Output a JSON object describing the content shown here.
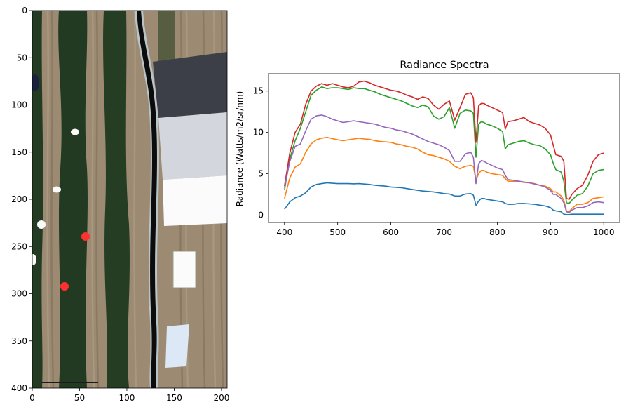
{
  "chart_data": [
    {
      "type": "image",
      "title": "",
      "xlabel": "",
      "ylabel": "",
      "xlim": [
        0,
        206
      ],
      "ylim": [
        400,
        0
      ],
      "x_ticks": [
        0,
        50,
        100,
        150,
        200
      ],
      "y_ticks": [
        0,
        50,
        100,
        150,
        200,
        250,
        300,
        350,
        400
      ],
      "colors": {
        "soil": "#9c8a72",
        "soil_dark": "#6e604e",
        "vegetation": "#203a20",
        "vegetation_light": "#2f4c2a",
        "road": "#0c0c0c",
        "road_edge": "#b8c4c8",
        "panel_dark": "#3c3f47",
        "panel_grey": "#d3d6dc",
        "panel_white": "#fbfbfb",
        "panel_blue": "#dce8f6",
        "marker_red": "#ff3030",
        "marker_white": "#fafafa"
      }
    },
    {
      "type": "line",
      "title": "Radiance Spectra",
      "xlabel": "",
      "ylabel": "Radiance (Watts/m2/sr/nm)",
      "xlim": [
        370,
        1030
      ],
      "ylim": [
        -0.9,
        17.1
      ],
      "x_ticks": [
        400,
        500,
        600,
        700,
        800,
        900,
        1000
      ],
      "y_ticks": [
        0,
        5,
        10,
        15
      ],
      "x": [
        400,
        410,
        420,
        430,
        440,
        450,
        460,
        470,
        480,
        490,
        500,
        510,
        520,
        530,
        540,
        550,
        560,
        570,
        580,
        590,
        600,
        610,
        620,
        630,
        640,
        650,
        660,
        670,
        680,
        690,
        700,
        710,
        720,
        730,
        740,
        750,
        755,
        760,
        765,
        770,
        775,
        780,
        790,
        800,
        810,
        815,
        820,
        830,
        840,
        850,
        860,
        870,
        880,
        890,
        900,
        905,
        910,
        920,
        925,
        930,
        935,
        940,
        950,
        960,
        970,
        980,
        990,
        1000
      ],
      "series": [
        {
          "color": "#1f77b4",
          "values": [
            0.7,
            1.6,
            2.1,
            2.3,
            2.7,
            3.4,
            3.7,
            3.8,
            3.9,
            3.85,
            3.8,
            3.8,
            3.8,
            3.78,
            3.8,
            3.75,
            3.7,
            3.6,
            3.55,
            3.5,
            3.4,
            3.35,
            3.3,
            3.2,
            3.1,
            3.0,
            2.9,
            2.85,
            2.8,
            2.7,
            2.6,
            2.55,
            2.3,
            2.3,
            2.55,
            2.6,
            2.4,
            1.2,
            1.7,
            2.0,
            2.0,
            1.9,
            1.8,
            1.7,
            1.6,
            1.4,
            1.3,
            1.3,
            1.4,
            1.4,
            1.35,
            1.3,
            1.2,
            1.1,
            0.9,
            0.6,
            0.5,
            0.4,
            0.1,
            0.05,
            0.05,
            0.1,
            0.1,
            0.1,
            0.1,
            0.1,
            0.1,
            0.1
          ]
        },
        {
          "color": "#ff7f0e",
          "values": [
            2.0,
            4.5,
            5.8,
            6.2,
            7.6,
            8.6,
            9.1,
            9.3,
            9.4,
            9.25,
            9.1,
            9.0,
            9.1,
            9.2,
            9.3,
            9.2,
            9.15,
            9.0,
            8.9,
            8.85,
            8.8,
            8.6,
            8.5,
            8.3,
            8.2,
            8.0,
            7.6,
            7.3,
            7.2,
            7.0,
            6.8,
            6.5,
            5.9,
            5.6,
            5.9,
            6.0,
            5.9,
            4.2,
            5.0,
            5.4,
            5.4,
            5.2,
            5.0,
            4.9,
            4.8,
            4.4,
            4.1,
            4.05,
            4.05,
            3.95,
            3.9,
            3.8,
            3.6,
            3.5,
            3.2,
            2.8,
            2.8,
            2.3,
            1.8,
            0.5,
            0.4,
            0.8,
            1.3,
            1.3,
            1.5,
            2.0,
            2.1,
            2.2
          ]
        },
        {
          "color": "#2ca02c",
          "values": [
            3.0,
            6.8,
            9.0,
            10.5,
            12.5,
            14.5,
            15.1,
            15.5,
            15.3,
            15.4,
            15.4,
            15.3,
            15.2,
            15.4,
            15.3,
            15.3,
            15.1,
            14.9,
            14.6,
            14.4,
            14.2,
            14.0,
            13.8,
            13.5,
            13.2,
            13.0,
            13.3,
            13.1,
            12.0,
            11.6,
            11.9,
            13.0,
            10.5,
            12.3,
            12.7,
            12.6,
            12.3,
            7.0,
            11.0,
            11.3,
            11.2,
            11.0,
            10.8,
            10.5,
            10.1,
            8.0,
            8.5,
            8.7,
            8.9,
            9.0,
            8.7,
            8.5,
            8.4,
            8.0,
            7.3,
            6.3,
            5.5,
            5.2,
            4.1,
            1.5,
            1.4,
            1.8,
            2.4,
            2.6,
            3.5,
            5.0,
            5.4,
            5.5
          ]
        },
        {
          "color": "#d62728",
          "values": [
            3.5,
            7.5,
            10.0,
            11.0,
            13.4,
            15.0,
            15.6,
            15.9,
            15.7,
            15.9,
            15.7,
            15.5,
            15.4,
            15.6,
            16.1,
            16.2,
            16.0,
            15.7,
            15.5,
            15.3,
            15.1,
            15.0,
            14.8,
            14.5,
            14.3,
            14.0,
            14.3,
            14.1,
            13.3,
            12.8,
            13.4,
            13.8,
            11.5,
            13.0,
            14.6,
            14.8,
            14.2,
            8.8,
            13.2,
            13.5,
            13.5,
            13.3,
            13.0,
            12.7,
            12.4,
            10.4,
            11.3,
            11.4,
            11.6,
            11.8,
            11.3,
            11.1,
            10.9,
            10.5,
            9.7,
            8.5,
            7.3,
            7.1,
            6.5,
            2.0,
            1.9,
            2.5,
            3.2,
            3.6,
            4.8,
            6.5,
            7.3,
            7.5
          ]
        },
        {
          "color": "#9467bd",
          "values": [
            3.3,
            6.5,
            8.3,
            8.6,
            10.2,
            11.6,
            12.0,
            12.1,
            11.9,
            11.6,
            11.4,
            11.2,
            11.3,
            11.4,
            11.3,
            11.2,
            11.1,
            11.0,
            10.8,
            10.6,
            10.5,
            10.3,
            10.2,
            10.0,
            9.8,
            9.5,
            9.2,
            8.9,
            8.7,
            8.5,
            8.2,
            7.8,
            6.5,
            6.5,
            7.4,
            7.6,
            7.0,
            3.8,
            6.2,
            6.6,
            6.5,
            6.3,
            6.0,
            5.7,
            5.5,
            4.8,
            4.3,
            4.2,
            4.1,
            4.0,
            3.9,
            3.75,
            3.6,
            3.4,
            3.0,
            2.5,
            2.5,
            2.0,
            1.5,
            0.4,
            0.3,
            0.6,
            0.9,
            0.9,
            1.1,
            1.5,
            1.6,
            1.5
          ]
        }
      ]
    }
  ]
}
